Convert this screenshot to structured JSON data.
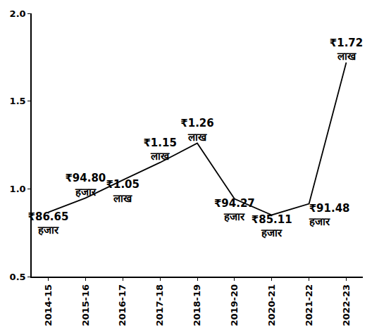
{
  "chart_data": {
    "type": "line",
    "categories": [
      "2014-15",
      "2015-16",
      "2016-17",
      "2017-18",
      "2018-19",
      "2019-20",
      "2020-21",
      "2021-22",
      "2022-23"
    ],
    "values": [
      0.8665,
      0.948,
      1.05,
      1.15,
      1.26,
      0.9427,
      0.8511,
      0.9148,
      1.72
    ],
    "value_labels": [
      "₹86.65\nहजार",
      "₹94.80\nहजार",
      "₹1.05\nलाख",
      "₹1.15\nलाख",
      "₹1.26\nलाख",
      "₹94.27\nहजार",
      "₹85.11\nहजार",
      "₹91.48\nहजार",
      "₹1.72\nलाख"
    ],
    "color": "#000000",
    "line_style": "solid",
    "data_labels": true,
    "grid": false,
    "ylim": [
      0.5,
      2.0
    ],
    "yticks": [
      0.5,
      {
        "value": 1,
        "label": "1.0"
      },
      1.5,
      {
        "value": 2,
        "label": "2.0"
      }
    ]
  }
}
